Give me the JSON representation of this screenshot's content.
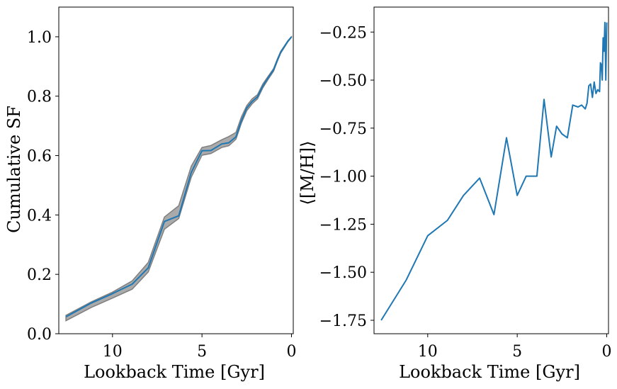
{
  "chart_data": [
    {
      "type": "line",
      "xlabel": "Lookback Time [Gyr]",
      "ylabel": "Cumulative SF",
      "xlim": [
        13.0,
        -0.1
      ],
      "ylim": [
        0.0,
        1.1
      ],
      "xticks": [
        10,
        5,
        0
      ],
      "yticks": [
        0.0,
        0.2,
        0.4,
        0.6,
        0.8,
        1.0
      ],
      "xtick_labels": [
        "10",
        "5",
        "0"
      ],
      "ytick_labels": [
        "0.0",
        "0.2",
        "0.4",
        "0.6",
        "0.8",
        "1.0"
      ],
      "grid": false,
      "colors": {
        "line": "#1f77b4",
        "band_fill": "#aaaaaa",
        "band_edge": "#808080"
      },
      "series": [
        {
          "x": [
            12.6,
            11.2,
            10.0,
            8.9,
            8.0,
            7.1,
            6.3,
            5.6,
            5.0,
            4.5,
            3.9,
            3.5,
            3.1,
            2.8,
            2.5,
            2.2,
            1.9,
            1.6,
            1.3,
            1.0,
            0.8,
            0.6,
            0.4,
            0.2,
            0.0
          ],
          "y": [
            0.057,
            0.103,
            0.135,
            0.167,
            0.222,
            0.378,
            0.397,
            0.543,
            0.616,
            0.617,
            0.639,
            0.643,
            0.663,
            0.717,
            0.76,
            0.782,
            0.798,
            0.834,
            0.862,
            0.889,
            0.92,
            0.948,
            0.967,
            0.985,
            1.0
          ]
        }
      ],
      "band": {
        "x": [
          12.6,
          11.2,
          10.0,
          8.9,
          8.0,
          7.1,
          6.3,
          5.6,
          5.0,
          4.5,
          3.9,
          3.5,
          3.1,
          2.8,
          2.5,
          2.2,
          1.9,
          1.6,
          1.3,
          1.0,
          0.8,
          0.6,
          0.4,
          0.2,
          0.0
        ],
        "upper": [
          0.062,
          0.107,
          0.14,
          0.178,
          0.24,
          0.393,
          0.431,
          0.564,
          0.627,
          0.634,
          0.653,
          0.664,
          0.678,
          0.73,
          0.768,
          0.791,
          0.805,
          0.841,
          0.867,
          0.893,
          0.924,
          0.951,
          0.969,
          0.987,
          1.0
        ],
        "lower": [
          0.044,
          0.088,
          0.12,
          0.15,
          0.208,
          0.352,
          0.388,
          0.527,
          0.601,
          0.607,
          0.627,
          0.633,
          0.655,
          0.709,
          0.751,
          0.774,
          0.791,
          0.828,
          0.857,
          0.884,
          0.916,
          0.945,
          0.964,
          0.983,
          0.998
        ]
      }
    },
    {
      "type": "line",
      "xlabel": "Lookback Time [Gyr]",
      "ylabel": "⟨[M/H]⟩",
      "xlim": [
        13.0,
        -0.1
      ],
      "ylim": [
        -1.82,
        -0.12
      ],
      "xticks": [
        10,
        5,
        0
      ],
      "yticks": [
        -1.75,
        -1.5,
        -1.25,
        -1.0,
        -0.75,
        -0.5,
        -0.25
      ],
      "xtick_labels": [
        "10",
        "5",
        "0"
      ],
      "ytick_labels": [
        "−1.75",
        "−1.50",
        "−1.25",
        "−1.00",
        "−0.75",
        "−0.50",
        "−0.25"
      ],
      "grid": false,
      "colors": {
        "line": "#1f77b4"
      },
      "series": [
        {
          "x": [
            12.6,
            11.2,
            10.0,
            8.9,
            8.0,
            7.1,
            6.3,
            5.6,
            5.0,
            4.5,
            3.9,
            3.5,
            3.1,
            2.8,
            2.5,
            2.2,
            1.9,
            1.6,
            1.4,
            1.2,
            1.1,
            1.0,
            0.9,
            0.8,
            0.7,
            0.6,
            0.5,
            0.4,
            0.35,
            0.3,
            0.25,
            0.2,
            0.15,
            0.1,
            0.05,
            0.0
          ],
          "y": [
            -1.75,
            -1.54,
            -1.31,
            -1.23,
            -1.1,
            -1.01,
            -1.2,
            -0.8,
            -1.1,
            -1.0,
            -1.0,
            -0.6,
            -0.9,
            -0.74,
            -0.78,
            -0.8,
            -0.63,
            -0.64,
            -0.63,
            -0.65,
            -0.62,
            -0.53,
            -0.52,
            -0.59,
            -0.51,
            -0.57,
            -0.55,
            -0.56,
            -0.41,
            -0.42,
            -0.5,
            -0.28,
            -0.35,
            -0.2,
            -0.5,
            -0.2
          ]
        }
      ]
    }
  ]
}
